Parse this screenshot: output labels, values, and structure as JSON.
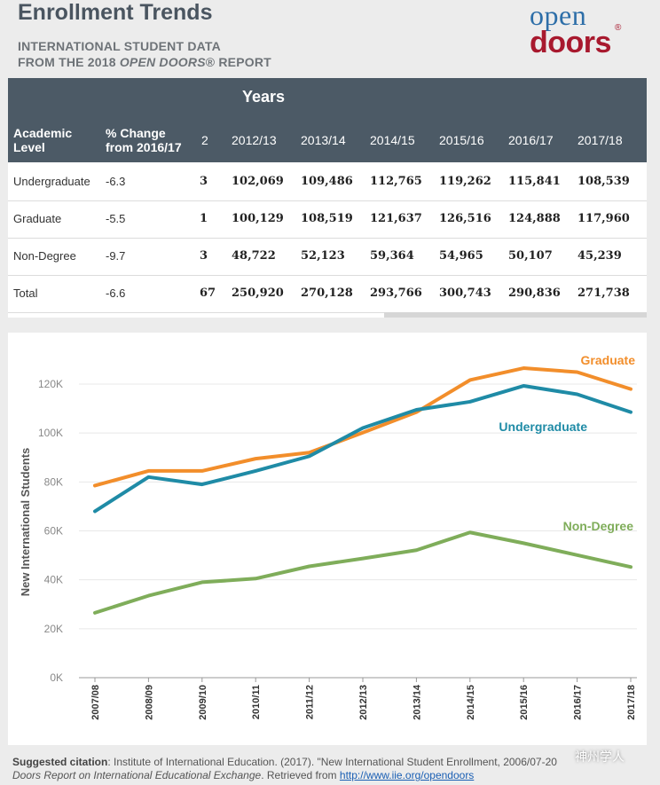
{
  "header": {
    "title": "Enrollment Trends",
    "subtitle_line1": "INTERNATIONAL STUDENT DATA",
    "subtitle_line2_prefix": "FROM THE 2018 ",
    "subtitle_line2_italic": "OPEN DOORS",
    "subtitle_line2_suffix": "® REPORT",
    "logo_top": "open",
    "logo_bottom": "doors",
    "logo_reg": "®"
  },
  "table": {
    "years_label": "Years",
    "col_level": "Academic Level",
    "col_level_l1": "Academic",
    "col_level_l2": "Level",
    "col_change_l1": "% Change",
    "col_change_l2": "from 2016/17",
    "col_n": "2",
    "years": [
      "2012/13",
      "2013/14",
      "2014/15",
      "2015/16",
      "2016/17",
      "2017/18"
    ],
    "rows": [
      {
        "level": "Undergraduate",
        "change": "-6.3",
        "n": "3",
        "values": [
          "102,069",
          "109,486",
          "112,765",
          "119,262",
          "115,841",
          "108,539"
        ]
      },
      {
        "level": "Graduate",
        "change": "-5.5",
        "n": "1",
        "values": [
          "100,129",
          "108,519",
          "121,637",
          "126,516",
          "124,888",
          "117,960"
        ]
      },
      {
        "level": "Non-Degree",
        "change": "-9.7",
        "n": "3",
        "values": [
          "48,722",
          "52,123",
          "59,364",
          "54,965",
          "50,107",
          "45,239"
        ]
      },
      {
        "level": "Total",
        "change": "-6.6",
        "n": "67",
        "values": [
          "250,920",
          "270,128",
          "293,766",
          "300,743",
          "290,836",
          "271,738"
        ]
      }
    ]
  },
  "chart_data": {
    "type": "line",
    "title": "",
    "xlabel": "",
    "ylabel": "New International Students",
    "categories": [
      "2007/08",
      "2008/09",
      "2009/10",
      "2010/11",
      "2011/12",
      "2012/13",
      "2013/14",
      "2014/15",
      "2015/16",
      "2016/17",
      "2017/18"
    ],
    "ylim": [
      0,
      140000
    ],
    "yticks": [
      0,
      20000,
      40000,
      60000,
      80000,
      100000,
      120000
    ],
    "ytick_labels": [
      "0K",
      "20K",
      "40K",
      "60K",
      "80K",
      "100K",
      "120K"
    ],
    "series": [
      {
        "name": "Graduate",
        "color": "#f28e2b",
        "values": [
          78500,
          84500,
          84500,
          89500,
          92000,
          100129,
          108519,
          121637,
          126516,
          124888,
          117960
        ]
      },
      {
        "name": "Undergraduate",
        "color": "#1f8ba6",
        "values": [
          68000,
          82000,
          79000,
          84500,
          90500,
          102069,
          109486,
          112765,
          119262,
          115841,
          108539
        ]
      },
      {
        "name": "Non-Degree",
        "color": "#7fad5a",
        "values": [
          26500,
          33500,
          39000,
          40500,
          45500,
          48722,
          52123,
          59364,
          54965,
          50107,
          45239
        ]
      }
    ]
  },
  "citation": {
    "label": "Suggested citation",
    "text1": ": Institute of International Education. (2017). \"New International Student Enrollment, 2006/07-20",
    "text2_italic": "Doors Report on International Educational Exchange",
    "text2_mid": ". Retrieved from ",
    "link": "http://www.iie.org/opendoors"
  },
  "watermark": "神州学人"
}
